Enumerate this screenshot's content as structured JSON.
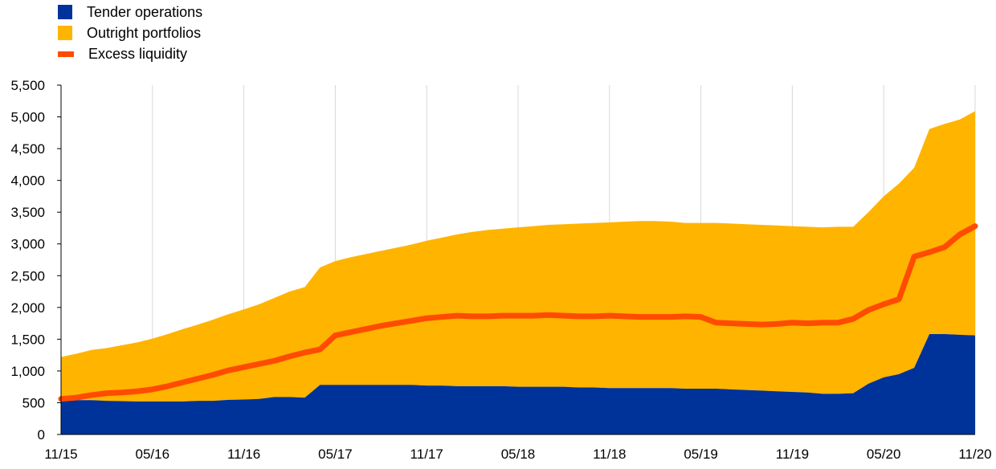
{
  "chart_data": {
    "type": "area",
    "title": "",
    "xlabel": "",
    "ylabel": "",
    "ylim": [
      0,
      5500
    ],
    "yticks": [
      0,
      500,
      1000,
      1500,
      2000,
      2500,
      3000,
      3500,
      4000,
      4500,
      5000,
      5500
    ],
    "ytick_labels": [
      "0",
      "500",
      "1,000",
      "1,500",
      "2,000",
      "2,500",
      "3,000",
      "3,500",
      "4,000",
      "4,500",
      "5,000",
      "5,500"
    ],
    "xticks": [
      "11/15",
      "05/16",
      "11/16",
      "05/17",
      "11/17",
      "05/18",
      "11/18",
      "05/19",
      "11/19",
      "05/20",
      "11/20"
    ],
    "grid": "vertical",
    "legend_position": "top-left",
    "colors": {
      "tender": "#003399",
      "outright": "#ffb400",
      "excess": "#ff4b00"
    },
    "x": [
      "11/15",
      "12/15",
      "01/16",
      "02/16",
      "03/16",
      "04/16",
      "05/16",
      "06/16",
      "07/16",
      "08/16",
      "09/16",
      "10/16",
      "11/16",
      "12/16",
      "01/17",
      "02/17",
      "03/17",
      "04/17",
      "05/17",
      "06/17",
      "07/17",
      "08/17",
      "09/17",
      "10/17",
      "11/17",
      "12/17",
      "01/18",
      "02/18",
      "03/18",
      "04/18",
      "05/18",
      "06/18",
      "07/18",
      "08/18",
      "09/18",
      "10/18",
      "11/18",
      "12/18",
      "01/19",
      "02/19",
      "03/19",
      "04/19",
      "05/19",
      "06/19",
      "07/19",
      "08/19",
      "09/19",
      "10/19",
      "11/19",
      "12/19",
      "01/20",
      "02/20",
      "03/20",
      "04/20",
      "05/20",
      "06/20",
      "07/20",
      "08/20",
      "09/20",
      "10/20",
      "11/20"
    ],
    "series": [
      {
        "name": "Tender operations",
        "kind": "area",
        "values": [
          540,
          540,
          540,
          530,
          525,
          520,
          520,
          520,
          520,
          530,
          530,
          545,
          550,
          560,
          590,
          590,
          580,
          780,
          780,
          780,
          780,
          780,
          780,
          780,
          770,
          770,
          760,
          760,
          760,
          760,
          750,
          750,
          750,
          750,
          740,
          740,
          730,
          730,
          730,
          730,
          730,
          720,
          720,
          720,
          710,
          700,
          690,
          680,
          670,
          660,
          640,
          640,
          650,
          800,
          900,
          950,
          1050,
          1580,
          1580,
          1570,
          1560
        ]
      },
      {
        "name": "Outright portfolios",
        "kind": "area",
        "values": [
          680,
          730,
          790,
          830,
          880,
          930,
          990,
          1060,
          1140,
          1200,
          1280,
          1350,
          1420,
          1490,
          1560,
          1660,
          1740,
          1850,
          1950,
          2010,
          2060,
          2110,
          2160,
          2210,
          2280,
          2330,
          2390,
          2430,
          2460,
          2480,
          2510,
          2530,
          2550,
          2560,
          2580,
          2590,
          2610,
          2620,
          2630,
          2630,
          2620,
          2610,
          2610,
          2610,
          2610,
          2610,
          2610,
          2610,
          2610,
          2610,
          2620,
          2630,
          2620,
          2700,
          2850,
          3000,
          3150,
          3230,
          3310,
          3390,
          3530
        ]
      },
      {
        "name": "Excess liquidity",
        "kind": "line",
        "values": [
          560,
          580,
          620,
          650,
          660,
          680,
          710,
          760,
          820,
          880,
          940,
          1010,
          1060,
          1110,
          1160,
          1230,
          1290,
          1340,
          1560,
          1610,
          1660,
          1710,
          1750,
          1790,
          1830,
          1850,
          1870,
          1860,
          1860,
          1870,
          1870,
          1870,
          1880,
          1870,
          1860,
          1860,
          1870,
          1860,
          1850,
          1850,
          1850,
          1860,
          1850,
          1760,
          1750,
          1740,
          1730,
          1740,
          1760,
          1750,
          1760,
          1760,
          1820,
          1960,
          2050,
          2130,
          2800,
          2870,
          2950,
          3150,
          3280
        ]
      }
    ]
  }
}
